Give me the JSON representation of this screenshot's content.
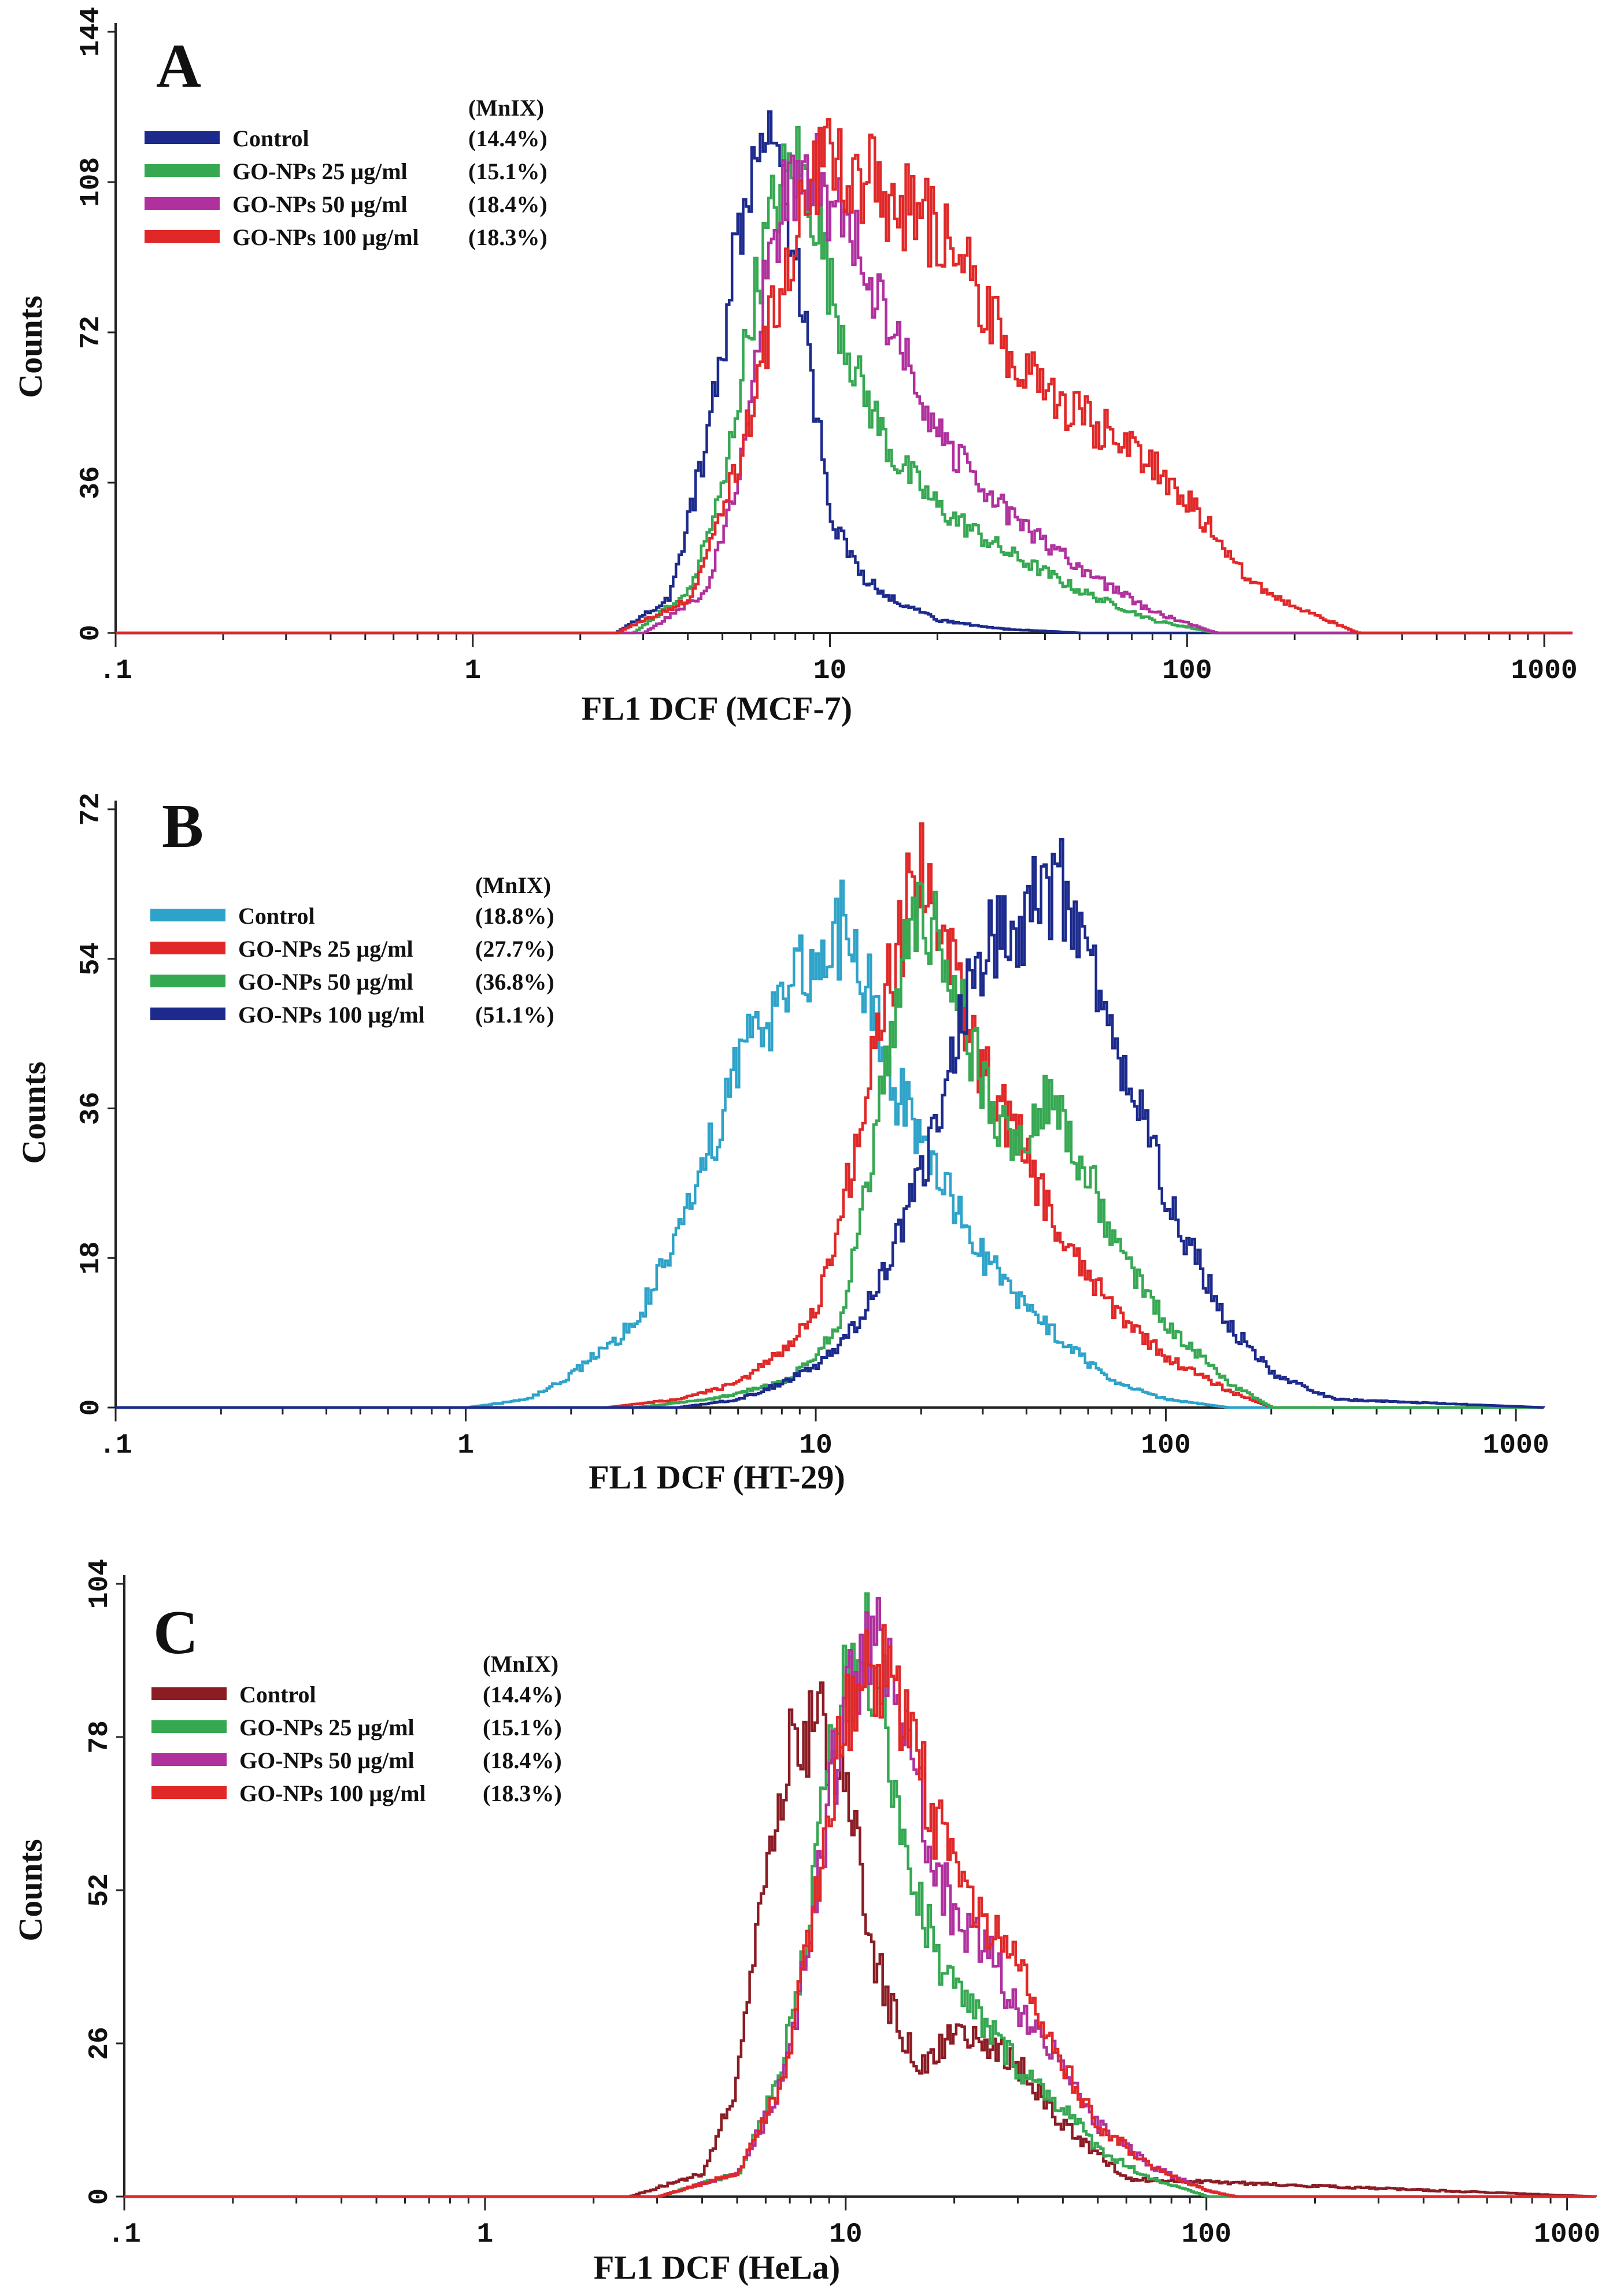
{
  "chart_data": [
    {
      "type": "line",
      "panel_label": "A",
      "xlabel": "FL1 DCF (MCF-7)",
      "ylabel": "Counts",
      "xscale": "log",
      "xlim": [
        0.1,
        1200
      ],
      "ylim": [
        0,
        144
      ],
      "xticks": [
        {
          "value": 0.1,
          "label": ".1"
        },
        {
          "value": 1,
          "label": "1"
        },
        {
          "value": 10,
          "label": "10"
        },
        {
          "value": 100,
          "label": "100"
        },
        {
          "value": 1000,
          "label": "1000"
        }
      ],
      "yticks": [
        {
          "value": 0,
          "label": "0"
        },
        {
          "value": 36,
          "label": "36"
        },
        {
          "value": 72,
          "label": "72"
        },
        {
          "value": 108,
          "label": "108"
        },
        {
          "value": 144,
          "label": "144"
        }
      ],
      "legend_header": "(MnIX)",
      "legend_position": "top-left",
      "series": [
        {
          "name": "Control",
          "mnix": "(14.4%)",
          "color": "#1c2a8c",
          "x": [
            0.1,
            2.5,
            3.5,
            4.5,
            5.5,
            6.2,
            7.0,
            8.0,
            9.0,
            10,
            12,
            15,
            20,
            30,
            50,
            1200
          ],
          "values": [
            0,
            0,
            8,
            45,
            95,
            116,
            112,
            88,
            55,
            28,
            14,
            8,
            3,
            1,
            0,
            0
          ]
        },
        {
          "name": "GO-NPs 25 μg/ml",
          "mnix": "(15.1%)",
          "color": "#36a852",
          "x": [
            0.1,
            2.8,
            4.0,
            5.0,
            6.0,
            7.0,
            8.0,
            9.0,
            10,
            12,
            15,
            20,
            30,
            50,
            80,
            120,
            1200
          ],
          "values": [
            0,
            0,
            10,
            35,
            78,
            104,
            113,
            102,
            82,
            60,
            42,
            30,
            20,
            10,
            3,
            0,
            0
          ]
        },
        {
          "name": "GO-NPs 50 μg/ml",
          "mnix": "(18.4%)",
          "color": "#b0309e",
          "x": [
            0.1,
            3.0,
            4.5,
            5.5,
            6.5,
            7.5,
            8.5,
            10,
            12,
            15,
            20,
            30,
            50,
            80,
            120,
            1200
          ],
          "values": [
            0,
            0,
            10,
            38,
            82,
            108,
            112,
            104,
            90,
            70,
            48,
            30,
            15,
            5,
            0,
            0
          ]
        },
        {
          "name": "GO-NPs 100 μg/ml",
          "mnix": "(18.3%)",
          "color": "#e02828",
          "x": [
            0.1,
            2.5,
            4.0,
            5.5,
            7.0,
            8.5,
            10,
            12,
            15,
            20,
            25,
            30,
            40,
            50,
            70,
            100,
            150,
            200,
            300,
            1200
          ],
          "values": [
            0,
            0,
            8,
            40,
            80,
            102,
            116,
            110,
            104,
            96,
            85,
            70,
            58,
            52,
            44,
            32,
            12,
            6,
            0,
            0
          ]
        }
      ]
    },
    {
      "type": "line",
      "panel_label": "B",
      "xlabel": "FL1 DCF (HT-29)",
      "ylabel": "Counts",
      "xscale": "log",
      "xlim": [
        0.1,
        1200
      ],
      "ylim": [
        0,
        72
      ],
      "xticks": [
        {
          "value": 0.1,
          "label": ".1"
        },
        {
          "value": 1,
          "label": "1"
        },
        {
          "value": 10,
          "label": "10"
        },
        {
          "value": 100,
          "label": "100"
        },
        {
          "value": 1000,
          "label": "1000"
        }
      ],
      "yticks": [
        {
          "value": 0,
          "label": "0"
        },
        {
          "value": 18,
          "label": "18"
        },
        {
          "value": 36,
          "label": "36"
        },
        {
          "value": 54,
          "label": "54"
        },
        {
          "value": 72,
          "label": "72"
        }
      ],
      "legend_header": "(MnIX)",
      "legend_position": "top-left",
      "series": [
        {
          "name": "Control",
          "mnix": "(18.8%)",
          "color": "#2ea3c9",
          "x": [
            0.1,
            1.0,
            1.5,
            2.0,
            3.0,
            4.0,
            5.0,
            6.0,
            8.0,
            10,
            12,
            14,
            16,
            20,
            25,
            30,
            40,
            50,
            70,
            100,
            150,
            1200
          ],
          "values": [
            0,
            0,
            1,
            4,
            10,
            20,
            32,
            42,
            50,
            54,
            58,
            50,
            40,
            32,
            24,
            18,
            12,
            8,
            3,
            1,
            0,
            0
          ]
        },
        {
          "name": "GO-NPs 25 μg/ml",
          "mnix": "(27.7%)",
          "color": "#e02828",
          "x": [
            0.1,
            2.5,
            4.0,
            6.0,
            8.0,
            10,
            12,
            15,
            18,
            20,
            22,
            25,
            30,
            40,
            50,
            70,
            100,
            150,
            200,
            1200
          ],
          "values": [
            0,
            0,
            1,
            3,
            7,
            12,
            25,
            45,
            60,
            66,
            60,
            50,
            40,
            30,
            20,
            12,
            6,
            2,
            0,
            0
          ]
        },
        {
          "name": "GO-NPs 50 μg/ml",
          "mnix": "(36.8%)",
          "color": "#36a852",
          "x": [
            0.1,
            3.0,
            5.0,
            8.0,
            10,
            12,
            15,
            18,
            20,
            25,
            30,
            35,
            40,
            45,
            50,
            60,
            70,
            100,
            150,
            200,
            1200
          ],
          "values": [
            0,
            0,
            1,
            3,
            6,
            12,
            35,
            55,
            60,
            50,
            38,
            32,
            34,
            38,
            34,
            28,
            20,
            10,
            3,
            0,
            0
          ]
        },
        {
          "name": "GO-NPs 100 μg/ml",
          "mnix": "(51.1%)",
          "color": "#1c2a8c",
          "x": [
            0.1,
            4.0,
            6.0,
            8.0,
            10,
            12,
            15,
            20,
            25,
            30,
            35,
            40,
            45,
            50,
            60,
            70,
            80,
            100,
            150,
            200,
            300,
            1200
          ],
          "values": [
            0,
            0,
            1,
            3,
            5,
            8,
            15,
            28,
            45,
            54,
            58,
            60,
            62,
            62,
            54,
            46,
            38,
            25,
            10,
            4,
            1,
            0
          ]
        }
      ]
    },
    {
      "type": "line",
      "panel_label": "C",
      "xlabel": "FL1 DCF (HeLa)",
      "ylabel": "Counts",
      "xscale": "log",
      "xlim": [
        0.1,
        1200
      ],
      "ylim": [
        0,
        104
      ],
      "xticks": [
        {
          "value": 0.1,
          "label": ".1"
        },
        {
          "value": 1,
          "label": "1"
        },
        {
          "value": 10,
          "label": "10"
        },
        {
          "value": 100,
          "label": "100"
        },
        {
          "value": 1000,
          "label": "1000"
        }
      ],
      "yticks": [
        {
          "value": 0,
          "label": "0"
        },
        {
          "value": 26,
          "label": "26"
        },
        {
          "value": 52,
          "label": "52"
        },
        {
          "value": 78,
          "label": "78"
        },
        {
          "value": 104,
          "label": "104"
        }
      ],
      "legend_header": "(MnIX)",
      "legend_position": "top-left",
      "series": [
        {
          "name": "Control",
          "mnix": "(14.4%)",
          "color": "#8b1c24",
          "x": [
            0.1,
            2.5,
            4.0,
            5.0,
            6.0,
            7.0,
            8.0,
            9.0,
            10,
            11,
            12,
            14,
            16,
            20,
            25,
            30,
            40,
            60,
            1200
          ],
          "values": [
            0,
            0,
            4,
            20,
            55,
            75,
            80,
            78,
            70,
            55,
            40,
            28,
            22,
            28,
            26,
            22,
            12,
            3,
            0
          ]
        },
        {
          "name": "GO-NPs 25 μg/ml",
          "mnix": "(15.1%)",
          "color": "#36a852",
          "x": [
            0.1,
            3.0,
            5.0,
            6.5,
            8.0,
            9.0,
            10,
            11,
            12,
            13,
            15,
            18,
            20,
            25,
            30,
            40,
            50,
            70,
            100,
            1200
          ],
          "values": [
            0,
            0,
            4,
            20,
            50,
            75,
            88,
            95,
            90,
            78,
            55,
            40,
            35,
            28,
            22,
            15,
            8,
            3,
            0,
            0
          ]
        },
        {
          "name": "GO-NPs 50 μg/ml",
          "mnix": "(18.4%)",
          "color": "#b0309e",
          "x": [
            0.1,
            3.0,
            5.0,
            6.5,
            8.0,
            9.0,
            10,
            11,
            12,
            13,
            15,
            18,
            20,
            25,
            30,
            40,
            50,
            70,
            100,
            120,
            1200
          ],
          "values": [
            0,
            0,
            4,
            18,
            45,
            70,
            85,
            92,
            95,
            88,
            72,
            55,
            48,
            40,
            32,
            22,
            12,
            5,
            1,
            0,
            0
          ]
        },
        {
          "name": "GO-NPs 100 μg/ml",
          "mnix": "(18.3%)",
          "color": "#e02828",
          "x": [
            0.1,
            3.0,
            5.0,
            6.5,
            8.0,
            9.0,
            10,
            11,
            12,
            13,
            15,
            18,
            20,
            25,
            30,
            35,
            40,
            50,
            70,
            100,
            120,
            1200
          ],
          "values": [
            0,
            0,
            4,
            18,
            45,
            70,
            82,
            88,
            90,
            88,
            78,
            62,
            55,
            45,
            38,
            30,
            22,
            12,
            5,
            1,
            0,
            0
          ]
        }
      ]
    }
  ]
}
